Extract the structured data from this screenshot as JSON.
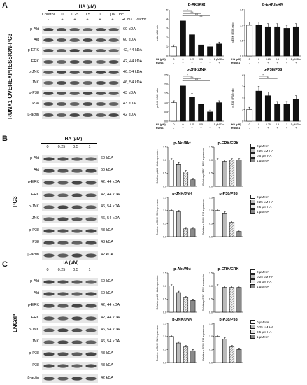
{
  "panels": [
    {
      "letter": "A",
      "side_label": "RUNX1 OVEREXPRESSION-PC3",
      "blot": {
        "header": "HA (μM)",
        "lanes": [
          "Control",
          "0",
          "0.25",
          "0.5",
          "1",
          "1 μM Doc"
        ],
        "vector_label": "RUNX1 vector",
        "vector_signs": [
          "-",
          "+",
          "+",
          "+",
          "+",
          "+"
        ],
        "rows": [
          {
            "name": "p-Akt",
            "kda": "60 kDA"
          },
          {
            "name": "Akt",
            "kda": "60 kDA"
          },
          {
            "name": "p-ERK",
            "kda": "42, 44 kDA"
          },
          {
            "name": "ERK",
            "kda": "42, 44 kDA"
          },
          {
            "name": "p-JNK",
            "kda": "46, 54 kDA"
          },
          {
            "name": "JNK",
            "kda": "46, 54 kDA"
          },
          {
            "name": "p-P38",
            "kda": "43 kDA"
          },
          {
            "name": "P38",
            "kda": "43 kDA"
          },
          {
            "name": "β-actin",
            "kda": "42 kDA"
          }
        ]
      },
      "charts": [
        {
          "title": "p-Akt/Akt",
          "ylabel": "p-Akt / Akt ratio",
          "values": [
            1.0,
            3.8,
            2.3,
            1.2,
            1.0,
            1.3
          ],
          "errors": [
            0.2,
            0.6,
            0.4,
            0.2,
            0.2,
            0.2
          ],
          "ylim": [
            0,
            5
          ],
          "ticks": [
            "0",
            "1",
            "2",
            "3",
            "4",
            "5"
          ],
          "sig": [
            "*",
            "***",
            "***",
            "***"
          ]
        },
        {
          "title": "p-ERK/ERK",
          "ylabel": "p-ERK / ERK ratio",
          "values": [
            1.0,
            1.0,
            0.95,
            0.95,
            0.9,
            0.95
          ],
          "errors": [
            0.1,
            0.1,
            0.1,
            0.1,
            0.1,
            0.1
          ],
          "ylim": [
            0,
            1.5
          ],
          "ticks": [
            "0.0",
            "0.5",
            "1.0",
            "1.5"
          ],
          "sig": []
        },
        {
          "title": "p-JNK/JNK",
          "ylabel": "p-JNK / JNK ratio",
          "values": [
            1.0,
            1.9,
            1.3,
            0.9,
            0.5,
            1.0
          ],
          "errors": [
            0.1,
            0.3,
            0.2,
            0.15,
            0.1,
            0.1
          ],
          "ylim": [
            0,
            2.5
          ],
          "ticks": [
            "0.0",
            "0.5",
            "1.0",
            "1.5",
            "2.0",
            "2.5"
          ],
          "sig": [
            "*",
            "***",
            "***"
          ]
        },
        {
          "title": "p-P38/P38",
          "ylabel": "p-P38 / P38 ratio",
          "values": [
            1.0,
            2.6,
            2.2,
            1.5,
            1.5,
            1.9
          ],
          "errors": [
            0.2,
            0.4,
            0.3,
            0.2,
            0.2,
            0.3
          ],
          "ylim": [
            0,
            4
          ],
          "ticks": [
            "0",
            "1",
            "2",
            "3",
            "4"
          ],
          "sig": [
            "**",
            "**"
          ]
        }
      ],
      "chart_x_header": "HA (μM)",
      "chart_lanes": [
        "0",
        "0",
        "0.25",
        "0.5",
        "1",
        "1 μM Doc"
      ],
      "chart_runx": "RUNX1",
      "chart_runx_signs": [
        "-",
        "+",
        "+",
        "+",
        "+",
        "+"
      ]
    },
    {
      "letter": "B",
      "side_label": "PC3",
      "blot": {
        "header": "HA (μM)",
        "lanes": [
          "0",
          "0.25",
          "0.5",
          "1"
        ],
        "rows": [
          {
            "name": "p-Akt",
            "kda": "60 kDA"
          },
          {
            "name": "Akt",
            "kda": "60 kDA"
          },
          {
            "name": "p-ERK",
            "kda": "42, 44 kDA"
          },
          {
            "name": "ERK",
            "kda": "42, 44 kDA"
          },
          {
            "name": "p-JNK",
            "kda": "46, 54 kDA"
          },
          {
            "name": "JNK",
            "kda": "46, 54 kDA"
          },
          {
            "name": "p-P38",
            "kda": "43 kDA"
          },
          {
            "name": "P38",
            "kda": "43 kDA"
          },
          {
            "name": "β-actin",
            "kda": "42 kDA"
          }
        ]
      },
      "charts": [
        {
          "title": "p-Akt/Akt",
          "ylabel": "Relative p-Akt / Akt expression",
          "values": [
            1.0,
            0.85,
            0.55,
            0.25
          ],
          "errors": [
            0.05,
            0.05,
            0.05,
            0.05
          ],
          "ylim": [
            0,
            1.5
          ],
          "ticks": [
            "0.0",
            "0.5",
            "1.0",
            "1.5"
          ]
        },
        {
          "title": "p-ERK/ERK",
          "ylabel": "Relative p-ERK / ERK expression",
          "values": [
            1.0,
            0.95,
            1.0,
            1.0
          ],
          "errors": [
            0.05,
            0.05,
            0.05,
            0.05
          ],
          "ylim": [
            0,
            1.5
          ],
          "ticks": [
            "0.0",
            "0.5",
            "1.0",
            "1.5"
          ]
        },
        {
          "title": "p-JNK/JNK",
          "ylabel": "Relative p-JNK / JNK expression",
          "values": [
            1.0,
            0.95,
            0.3,
            0.3
          ],
          "errors": [
            0.05,
            0.05,
            0.05,
            0.05
          ],
          "ylim": [
            0,
            1.5
          ],
          "ticks": [
            "0.0",
            "0.5",
            "1.0",
            "1.5"
          ]
        },
        {
          "title": "p-P38/P38",
          "ylabel": "Relative p-P38 / P38 expression",
          "values": [
            1.0,
            0.9,
            0.55,
            0.2
          ],
          "errors": [
            0.05,
            0.05,
            0.05,
            0.05
          ],
          "ylim": [
            0,
            1.5
          ],
          "ticks": [
            "0.0",
            "0.5",
            "1.0",
            "1.5"
          ]
        }
      ],
      "legend": [
        "0  μM HA",
        "0.25 μM HA",
        "0.5 μM HA",
        "1 μM HA"
      ]
    },
    {
      "letter": "C",
      "side_label": "LNCaP",
      "blot": {
        "header": "HA (μM)",
        "lanes": [
          "0",
          "0.25",
          "0.5",
          "1"
        ],
        "rows": [
          {
            "name": "p-Akt",
            "kda": "60 kDA"
          },
          {
            "name": "Akt",
            "kda": "60 kDA"
          },
          {
            "name": "p-ERK",
            "kda": "42, 44 kDA"
          },
          {
            "name": "ERK",
            "kda": "42, 44 kDA"
          },
          {
            "name": "p-JNK",
            "kda": "46, 54 kDA"
          },
          {
            "name": "JNK",
            "kda": "46, 54 kDA"
          },
          {
            "name": "p-P38",
            "kda": "43 kDA"
          },
          {
            "name": "P38",
            "kda": "43 kDA"
          },
          {
            "name": "β-actin",
            "kda": "42 kDA"
          }
        ]
      },
      "charts": [
        {
          "title": "p-Akt/Akt",
          "ylabel": "Relative p-Akt / Akt expression",
          "values": [
            1.0,
            0.75,
            0.55,
            0.45
          ],
          "errors": [
            0.05,
            0.05,
            0.05,
            0.05
          ],
          "ylim": [
            0,
            1.5
          ],
          "ticks": [
            "0.0",
            "0.5",
            "1.0",
            "1.5"
          ]
        },
        {
          "title": "p-ERK/ERK",
          "ylabel": "Relative p-ERK / ERK expression",
          "values": [
            1.0,
            0.95,
            0.95,
            0.95
          ],
          "errors": [
            0.05,
            0.05,
            0.05,
            0.05
          ],
          "ylim": [
            0,
            1.5
          ],
          "ticks": [
            "0.0",
            "0.5",
            "1.0",
            "1.5"
          ]
        },
        {
          "title": "p-JNK/JNK",
          "ylabel": "Relative p-JNK / JNK expression",
          "values": [
            1.0,
            0.75,
            0.6,
            0.45
          ],
          "errors": [
            0.05,
            0.05,
            0.05,
            0.05
          ],
          "ylim": [
            0,
            1.5
          ],
          "ticks": [
            "0.0",
            "0.5",
            "1.0",
            "1.5"
          ]
        },
        {
          "title": "p-P38/P38",
          "ylabel": "Relative p-P38 / P38 expression",
          "values": [
            1.0,
            0.9,
            0.6,
            0.5
          ],
          "errors": [
            0.05,
            0.05,
            0.05,
            0.05
          ],
          "ylim": [
            0,
            1.5
          ],
          "ticks": [
            "0.0",
            "0.5",
            "1.0",
            "1.5"
          ]
        }
      ],
      "legend": [
        "0  μM HA",
        "0.25 μM HA",
        "0.5 μM HA",
        "1 μM HA"
      ]
    }
  ],
  "chart_data": [
    {
      "type": "bar",
      "title": "p-Akt/Akt",
      "categories": [
        "0",
        "0",
        "0.25",
        "0.5",
        "1",
        "1 μM Doc"
      ],
      "values": [
        1.0,
        3.8,
        2.3,
        1.2,
        1.0,
        1.3
      ],
      "ylabel": "p-Akt / Akt ratio",
      "ylim": [
        0,
        5
      ]
    },
    {
      "type": "bar",
      "title": "p-ERK/ERK",
      "categories": [
        "0",
        "0",
        "0.25",
        "0.5",
        "1",
        "1 μM Doc"
      ],
      "values": [
        1.0,
        1.0,
        0.95,
        0.95,
        0.9,
        0.95
      ],
      "ylabel": "p-ERK / ERK ratio",
      "ylim": [
        0,
        1.5
      ]
    },
    {
      "type": "bar",
      "title": "p-JNK/JNK",
      "categories": [
        "0",
        "0",
        "0.25",
        "0.5",
        "1",
        "1 μM Doc"
      ],
      "values": [
        1.0,
        1.9,
        1.3,
        0.9,
        0.5,
        1.0
      ],
      "ylabel": "p-JNK / JNK ratio",
      "ylim": [
        0,
        2.5
      ]
    },
    {
      "type": "bar",
      "title": "p-P38/P38",
      "categories": [
        "0",
        "0",
        "0.25",
        "0.5",
        "1",
        "1 μM Doc"
      ],
      "values": [
        1.0,
        2.6,
        2.2,
        1.5,
        1.5,
        1.9
      ],
      "ylabel": "p-P38 / P38 ratio",
      "ylim": [
        0,
        4
      ]
    }
  ]
}
